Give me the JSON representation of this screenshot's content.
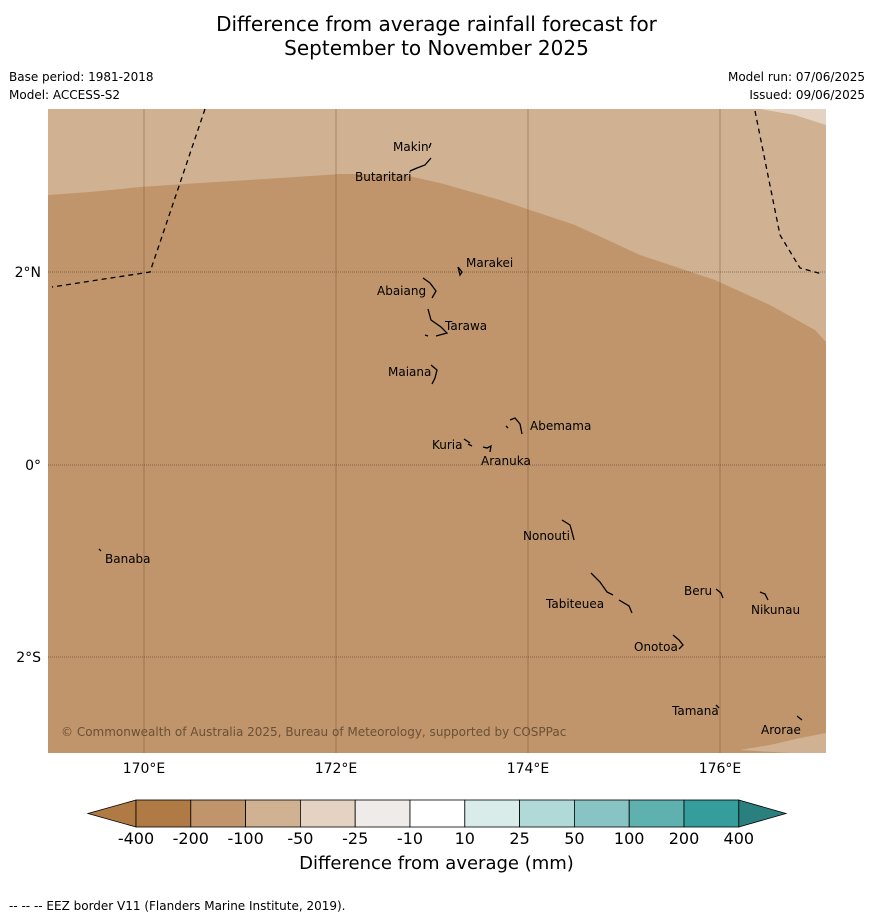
{
  "header": {
    "title_line1": "Difference from average rainfall forecast for",
    "title_line2": "September to November 2025",
    "base_period": "Base period: 1981-2018",
    "model": "Model: ACCESS-S2",
    "model_run": "Model run: 07/06/2025",
    "issued": "Issued: 09/06/2025"
  },
  "map": {
    "lon_labels": [
      "170°E",
      "172°E",
      "174°E",
      "176°E"
    ],
    "lat_labels": [
      "2°N",
      "0°",
      "2°S"
    ],
    "islands": [
      "Makin",
      "Butaritari",
      "Marakei",
      "Abaiang",
      "Tarawa",
      "Maiana",
      "Abemama",
      "Kuria",
      "Aranuka",
      "Nonouti",
      "Banaba",
      "Tabiteuea",
      "Beru",
      "Nikunau",
      "Onotoa",
      "Tamana",
      "Arorae"
    ],
    "copyright": "© Commonwealth of Australia 2025, Bureau of Meteorology, supported by COSPPac",
    "fill_colors": {
      "-200_to_-100": "#c0956b",
      "-100_to_-50": "#d0b293",
      "-50_to_-25": "#e4d3c3"
    }
  },
  "colorbar": {
    "ticks": [
      "-400",
      "-200",
      "-100",
      "-50",
      "-25",
      "-10",
      "10",
      "25",
      "50",
      "100",
      "200",
      "400"
    ],
    "colors": [
      "#b07a45",
      "#c0956b",
      "#d0b293",
      "#e4d3c3",
      "#efebe8",
      "#ffffff",
      "#d9ecea",
      "#b0d9d8",
      "#88c4c3",
      "#5fb1b0",
      "#359d9b",
      "#2a807e"
    ],
    "label": "Difference from average (mm)"
  },
  "footnote": "--  --  -- EEZ border V11 (Flanders Marine Institute, 2019)."
}
